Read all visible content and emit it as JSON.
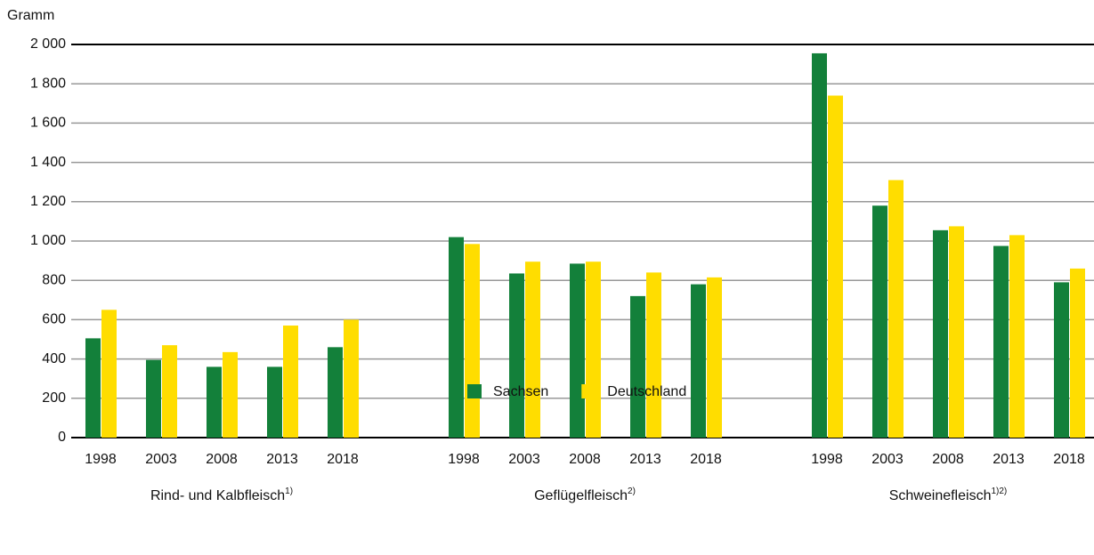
{
  "chart_data": {
    "type": "bar",
    "y_label": "Gramm",
    "groups": [
      {
        "label": "Rind- und Kalbfleisch",
        "note": "1)",
        "categories": [
          "1998",
          "2003",
          "2008",
          "2013",
          "2018"
        ]
      },
      {
        "label": "Geflügelfleisch",
        "note": "2)",
        "categories": [
          "1998",
          "2003",
          "2008",
          "2013",
          "2018"
        ]
      },
      {
        "label": "Schweinefleisch",
        "note": "1)2)",
        "categories": [
          "1998",
          "2003",
          "2008",
          "2013",
          "2018"
        ]
      }
    ],
    "series": [
      {
        "name": "Sachsen",
        "color": "#13803a",
        "values": [
          505,
          395,
          360,
          360,
          460,
          1020,
          835,
          885,
          720,
          780,
          1955,
          1180,
          1055,
          975,
          790
        ]
      },
      {
        "name": "Deutschland",
        "color": "#ffdd00",
        "values": [
          650,
          470,
          435,
          570,
          600,
          985,
          895,
          895,
          840,
          815,
          1740,
          1310,
          1075,
          1030,
          860
        ]
      }
    ],
    "ylim": [
      0,
      2000
    ],
    "yticks": [
      0,
      200,
      400,
      600,
      800,
      {
        "value": 1000,
        "label": "1 000"
      },
      {
        "value": 1200,
        "label": "1 200"
      },
      {
        "value": 1400,
        "label": "1 400"
      },
      {
        "value": 1600,
        "label": "1 600"
      },
      {
        "value": 1800,
        "label": "1 800"
      },
      {
        "value": 2000,
        "label": "2 000"
      }
    ],
    "grid": true,
    "legend": "bottom"
  }
}
